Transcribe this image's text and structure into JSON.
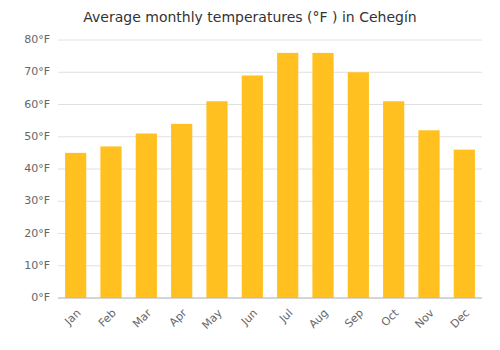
{
  "chart_data": {
    "type": "bar",
    "title": "Average monthly temperatures (°F ) in Cehegín",
    "categories": [
      "Jan",
      "Feb",
      "Mar",
      "Apr",
      "May",
      "Jun",
      "Jul",
      "Aug",
      "Sep",
      "Oct",
      "Nov",
      "Dec"
    ],
    "values": [
      45,
      47,
      51,
      54,
      61,
      69,
      76,
      76,
      70,
      61,
      52,
      46
    ],
    "color": "#FFC020",
    "ylim": [
      0,
      80
    ],
    "yticks": [
      {
        "value": 0,
        "label": "0°F"
      },
      {
        "value": 10,
        "label": "10°F"
      },
      {
        "value": 20,
        "label": "20°F"
      },
      {
        "value": 30,
        "label": "30°F"
      },
      {
        "value": 40,
        "label": "40°F"
      },
      {
        "value": 50,
        "label": "50°F"
      },
      {
        "value": 60,
        "label": "60°F"
      },
      {
        "value": 70,
        "label": "70°F"
      },
      {
        "value": 80,
        "label": "80°F"
      }
    ],
    "grid": true
  }
}
